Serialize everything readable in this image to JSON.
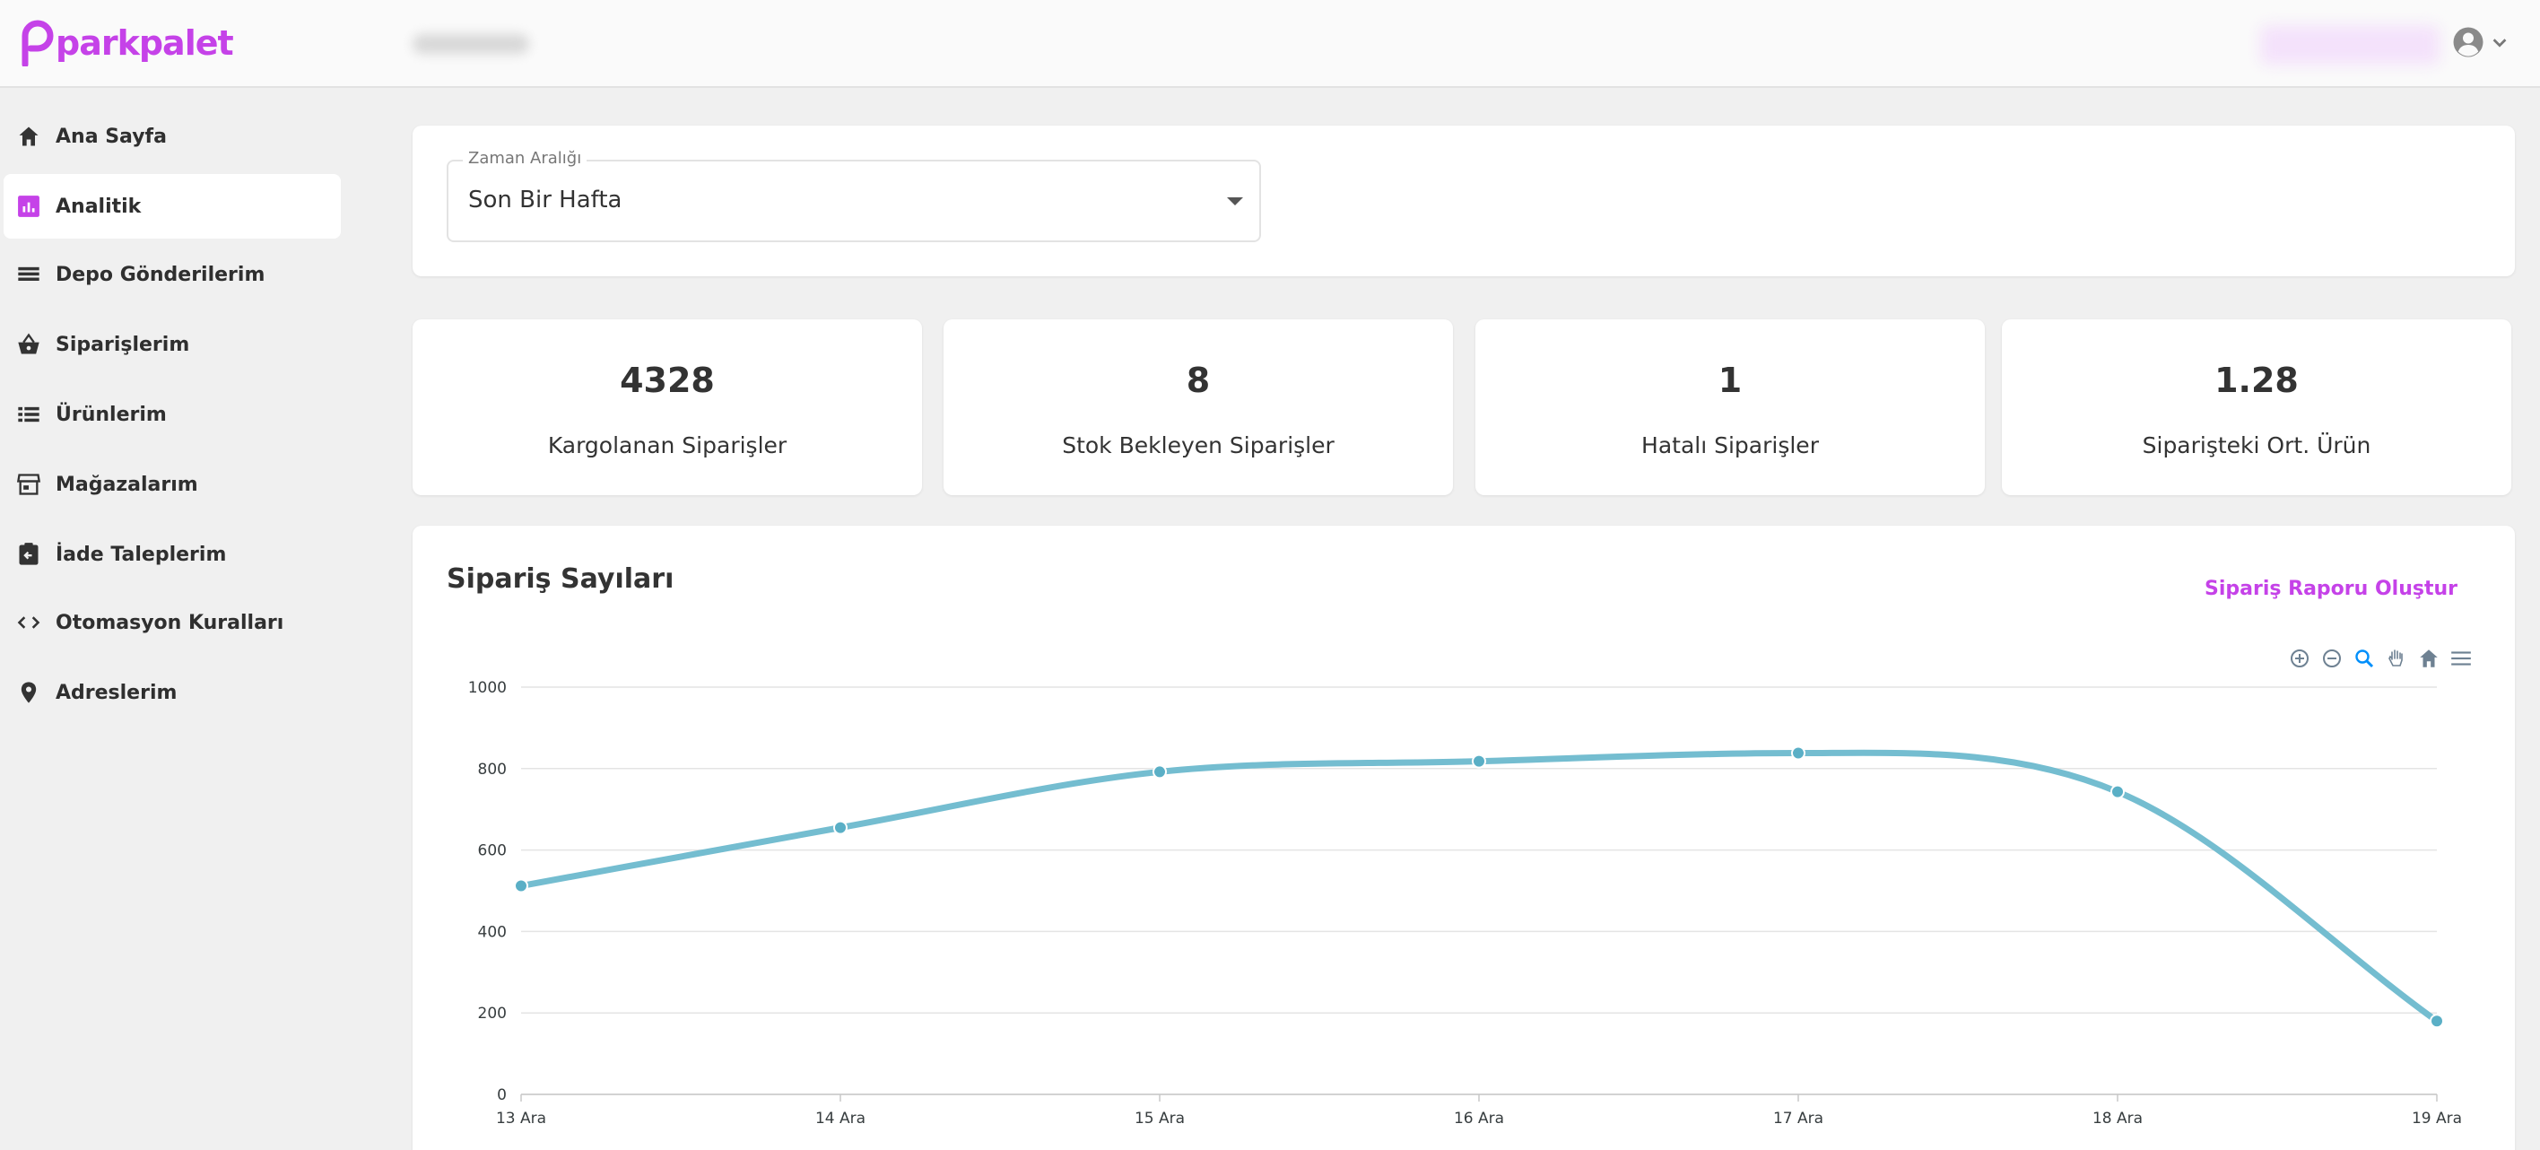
{
  "brand": {
    "name": "parkpalet",
    "color": "#c542e8"
  },
  "sidebar": {
    "items": [
      {
        "label": "Ana Sayfa",
        "icon": "home-icon",
        "active": false
      },
      {
        "label": "Analitik",
        "icon": "analytics-icon",
        "active": true
      },
      {
        "label": "Depo Gönderilerim",
        "icon": "warehouse-icon",
        "active": false
      },
      {
        "label": "Siparişlerim",
        "icon": "basket-icon",
        "active": false
      },
      {
        "label": "Ürünlerim",
        "icon": "list-icon",
        "active": false
      },
      {
        "label": "Mağazalarım",
        "icon": "store-icon",
        "active": false
      },
      {
        "label": "İade Taleplerim",
        "icon": "return-icon",
        "active": false
      },
      {
        "label": "Otomasyon Kuralları",
        "icon": "code-icon",
        "active": false
      },
      {
        "label": "Adreslerim",
        "icon": "location-icon",
        "active": false
      }
    ]
  },
  "filter": {
    "label": "Zaman Aralığı",
    "value": "Son Bir Hafta"
  },
  "stats": [
    {
      "value": "4328",
      "label": "Kargolanan Siparişler"
    },
    {
      "value": "8",
      "label": "Stok Bekleyen Siparişler"
    },
    {
      "value": "1",
      "label": "Hatalı Siparişler"
    },
    {
      "value": "1.28",
      "label": "Siparişteki Ort. Ürün"
    }
  ],
  "chart_section": {
    "title": "Sipariş Sayıları",
    "report_button": "Sipariş Raporu Oluştur"
  },
  "chart_toolbar": [
    "zoom-in-icon",
    "zoom-out-icon",
    "selection-zoom-icon",
    "pan-icon",
    "reset-home-icon",
    "menu-icon"
  ],
  "chart_data": {
    "type": "line",
    "categories": [
      "13 Ara",
      "14 Ara",
      "15 Ara",
      "16 Ara",
      "17 Ara",
      "18 Ara",
      "19 Ara"
    ],
    "series": [
      {
        "values": [
          512,
          655,
          792,
          818,
          838,
          743,
          180
        ]
      }
    ],
    "ylim": [
      0,
      1000
    ],
    "yticks": [
      0,
      200,
      400,
      600,
      800,
      1000
    ],
    "grid": true,
    "smooth": true,
    "line_color": "#74bdd0",
    "marker_color": "#5aafc6"
  }
}
